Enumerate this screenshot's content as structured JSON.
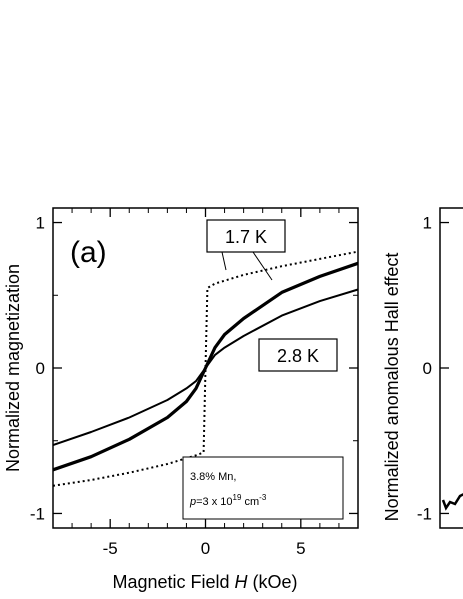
{
  "chart_data": [
    {
      "type": "line",
      "panel_label": "(a)",
      "xlabel_prefix": "Magnetic Field ",
      "xlabel_var": "H",
      "xlabel_unit": " (kOe)",
      "ylabel": "Normalized  magnetization",
      "xlim": [
        -8,
        8
      ],
      "ylim": [
        -1.1,
        1.1
      ],
      "xticks": [
        -5,
        0,
        5
      ],
      "yticks": [
        -1,
        0,
        1
      ],
      "xtick_labels": [
        "-5",
        "0",
        "5"
      ],
      "ytick_labels": [
        "-1",
        "0",
        "1"
      ],
      "annotations": {
        "label_1_7K": "1.7 K",
        "label_2_8K": "2.8 K",
        "sample_line1": "3.8% Mn,",
        "sample_p": "p",
        "sample_eq": "=3 x 10",
        "sample_exp": "19",
        "sample_unit": " cm",
        "sample_unit_exp": "-3"
      },
      "series": [
        {
          "style": "dotted",
          "x": [
            -8,
            -6,
            -4,
            -2,
            -1,
            -0.5,
            -0.1,
            0,
            0.1,
            0.5,
            1,
            2,
            4,
            6,
            8
          ],
          "y": [
            -0.81,
            -0.77,
            -0.72,
            -0.66,
            -0.62,
            -0.6,
            -0.58,
            0,
            0.55,
            0.58,
            0.6,
            0.64,
            0.7,
            0.75,
            0.8
          ]
        },
        {
          "style": "solid-thick",
          "x": [
            -8,
            -6,
            -4,
            -2,
            -1,
            -0.5,
            0,
            0.5,
            1,
            2,
            4,
            6,
            8
          ],
          "y": [
            -0.7,
            -0.61,
            -0.49,
            -0.34,
            -0.23,
            -0.14,
            0,
            0.14,
            0.23,
            0.34,
            0.52,
            0.63,
            0.72
          ]
        },
        {
          "style": "solid",
          "x": [
            -8,
            -6,
            -4,
            -2,
            -1,
            -0.5,
            0,
            0.5,
            1,
            2,
            4,
            6,
            8
          ],
          "y": [
            -0.53,
            -0.44,
            -0.34,
            -0.22,
            -0.14,
            -0.09,
            0,
            0.09,
            0.14,
            0.22,
            0.36,
            0.46,
            0.54
          ]
        }
      ]
    },
    {
      "type": "line",
      "ylabel": "Normalized anomalous Hall effect",
      "ylim": [
        -1.1,
        1.1
      ],
      "yticks": [
        -1,
        0,
        1
      ],
      "ytick_labels": [
        "-1",
        "0",
        "1"
      ]
    }
  ]
}
